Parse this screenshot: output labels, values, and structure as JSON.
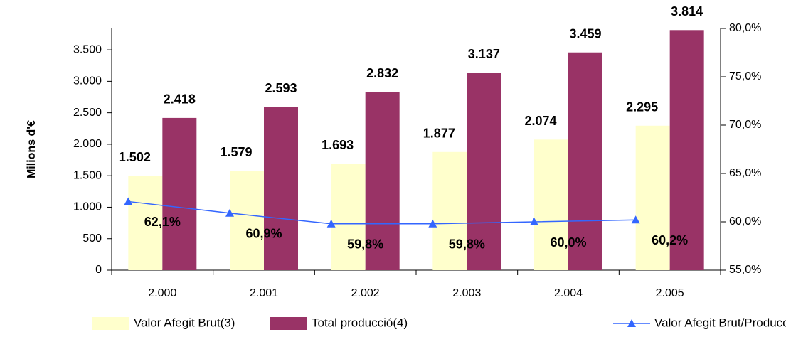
{
  "chart_data": {
    "type": "bar_line",
    "ylabel": "Milions d'€",
    "categories": [
      "2.000",
      "2.001",
      "2.002",
      "2.003",
      "2.004",
      "2.005"
    ],
    "series": [
      {
        "name": "Valor Afegit Brut(3)",
        "type": "bar",
        "color": "#ffffcc",
        "values": [
          1502,
          1579,
          1693,
          1877,
          2074,
          2295
        ],
        "value_labels": [
          "1.502",
          "1.579",
          "1.693",
          "1.877",
          "2.074",
          "2.295"
        ]
      },
      {
        "name": "Total producció(4)",
        "type": "bar",
        "color": "#993366",
        "values": [
          2418,
          2593,
          2832,
          3137,
          3459,
          3814
        ],
        "value_labels": [
          "2.418",
          "2.593",
          "2.832",
          "3.137",
          "3.459",
          "3.814"
        ]
      },
      {
        "name": "Valor Afegit Brut/Producció",
        "type": "line",
        "axis": "y2",
        "color": "#3366ff",
        "values": [
          62.1,
          60.9,
          59.8,
          59.8,
          60.0,
          60.2
        ],
        "value_labels": [
          "62,1%",
          "60,9%",
          "59,8%",
          "59,8%",
          "60,0%",
          "60,2%"
        ]
      }
    ],
    "ylim": [
      0,
      3840
    ],
    "yticks": [
      0,
      500,
      {
        "value": 1000,
        "label": "1.000"
      },
      {
        "value": 1500,
        "label": "1.500"
      },
      {
        "value": 2000,
        "label": "2.000"
      },
      {
        "value": 2500,
        "label": "2.500"
      },
      {
        "value": 3000,
        "label": "3.000"
      },
      {
        "value": 3500,
        "label": "3.500"
      }
    ],
    "y2lim": [
      55,
      80
    ],
    "y2ticks": [
      {
        "value": 55,
        "label": "55,0%"
      },
      {
        "value": 60,
        "label": "60,0%"
      },
      {
        "value": 65,
        "label": "65,0%"
      },
      {
        "value": 70,
        "label": "70,0%"
      },
      {
        "value": 75,
        "label": "75,0%"
      },
      {
        "value": 80,
        "label": "80,0%"
      }
    ],
    "legend": "bottom"
  }
}
